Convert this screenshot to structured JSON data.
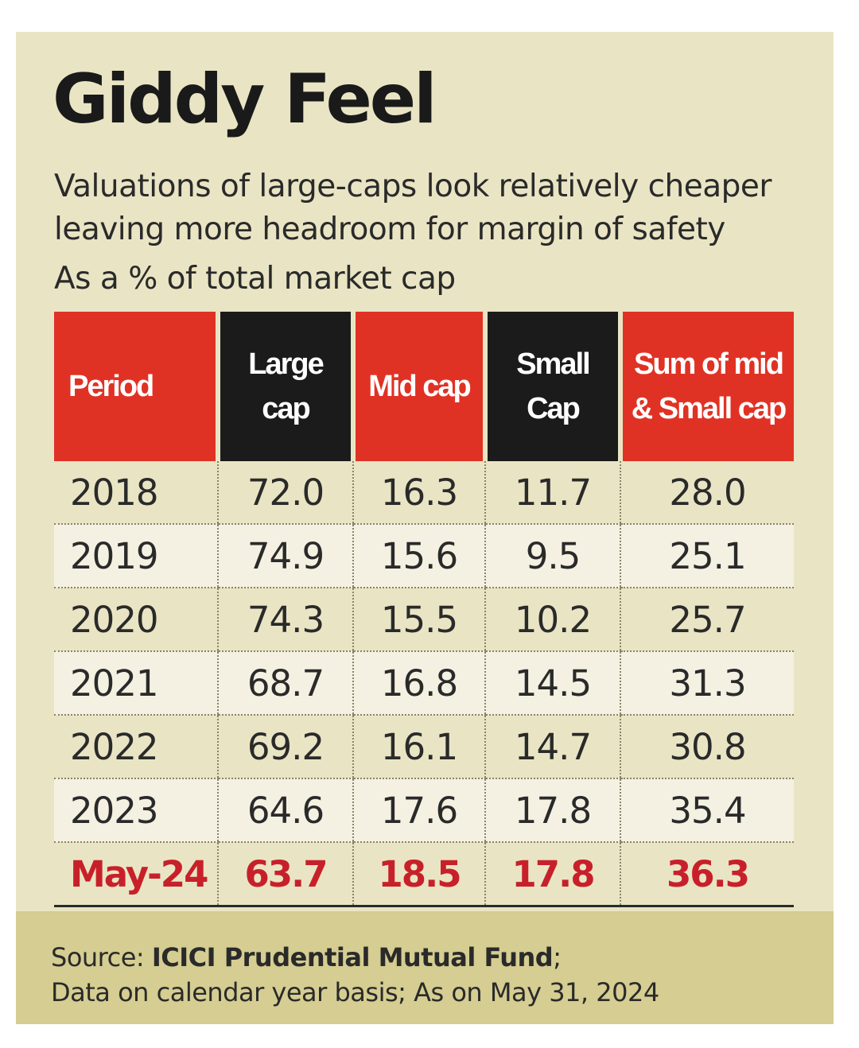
{
  "title": "Giddy Feel",
  "subtitle": "Valuations of large-caps look relatively cheaper leaving more headroom for margin of safety",
  "unit": "As a % of total market cap",
  "chart_data": {
    "type": "table",
    "title": "Giddy Feel",
    "columns": [
      "Period",
      "Large cap",
      "Mid cap",
      "Small Cap",
      "Sum of mid & Small cap"
    ],
    "rows": [
      {
        "period": "2018",
        "large": "72.0",
        "mid": "16.3",
        "small": "11.7",
        "sum": "28.0"
      },
      {
        "period": "2019",
        "large": "74.9",
        "mid": "15.6",
        "small": "9.5",
        "sum": "25.1"
      },
      {
        "period": "2020",
        "large": "74.3",
        "mid": "15.5",
        "small": "10.2",
        "sum": "25.7"
      },
      {
        "period": "2021",
        "large": "68.7",
        "mid": "16.8",
        "small": "14.5",
        "sum": "31.3"
      },
      {
        "period": "2022",
        "large": "69.2",
        "mid": "16.1",
        "small": "14.7",
        "sum": "30.8"
      },
      {
        "period": "2023",
        "large": "64.6",
        "mid": "17.6",
        "small": "17.8",
        "sum": "35.4"
      },
      {
        "period": "May-24",
        "large": "63.7",
        "mid": "18.5",
        "small": "17.8",
        "sum": "36.3"
      }
    ]
  },
  "colors": {
    "background": "#e9e5c4",
    "header_red": "#e03224",
    "header_dark": "#1b1b1b",
    "highlight_text": "#c8202a",
    "footer": "#d5cd91"
  },
  "source": {
    "label": "Source: ",
    "name": "ICICI Prudential Mutual Fund",
    "suffix": ";",
    "note": "Data on calendar year basis;  As on May 31, 2024"
  }
}
